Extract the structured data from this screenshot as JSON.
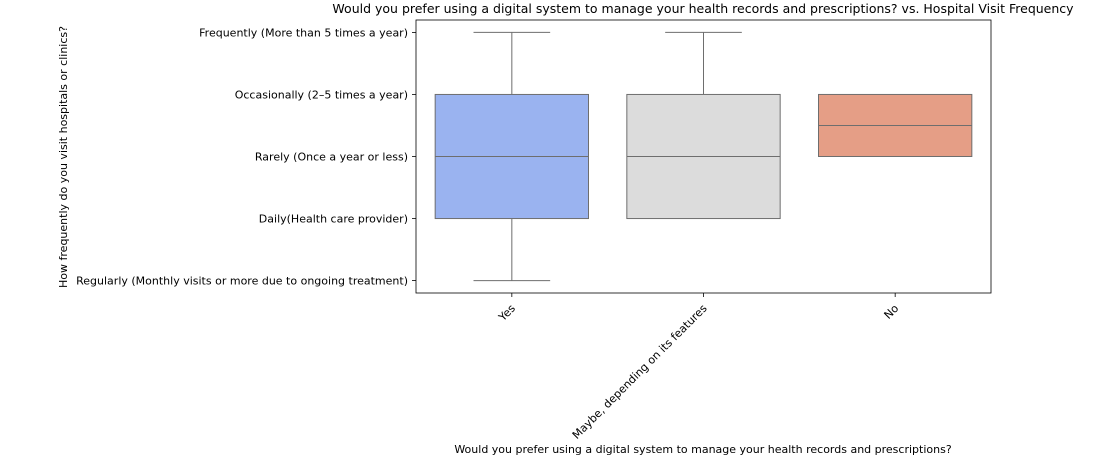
{
  "chart_data": {
    "type": "box",
    "title": "Would you prefer using a digital system to manage your health records and prescriptions? vs. Hospital Visit Frequency",
    "xlabel": "Would you prefer using a digital system to manage your health records and prescriptions?",
    "ylabel": "How frequently do you visit hospitals or clinics?",
    "y_categories": [
      "Frequently (More than 5 times a year)",
      "Occasionally (2–5 times a year)",
      "Rarely (Once a year or less)",
      "Daily(Health care provider)",
      "Regularly (Monthly visits or more due to ongoing treatment)"
    ],
    "y_codes": [
      0,
      1,
      2,
      3,
      4
    ],
    "ylim": [
      -0.2,
      4.2
    ],
    "y_inverted": true,
    "grid": false,
    "legend": "none",
    "series": [
      {
        "category": "Yes",
        "whisker_low": 0,
        "q1": 1,
        "median": 2,
        "q3": 3,
        "whisker_high": 4,
        "color": "#9ab3f0"
      },
      {
        "category": "Maybe, depending on its features",
        "whisker_low": 0,
        "q1": 1,
        "median": 2,
        "q3": 3,
        "whisker_high": 3,
        "color": "#dcdcdc"
      },
      {
        "category": "No",
        "whisker_low": 1,
        "q1": 1,
        "median": 1.5,
        "q3": 2,
        "whisker_high": 2,
        "color": "#e59e86"
      }
    ]
  }
}
